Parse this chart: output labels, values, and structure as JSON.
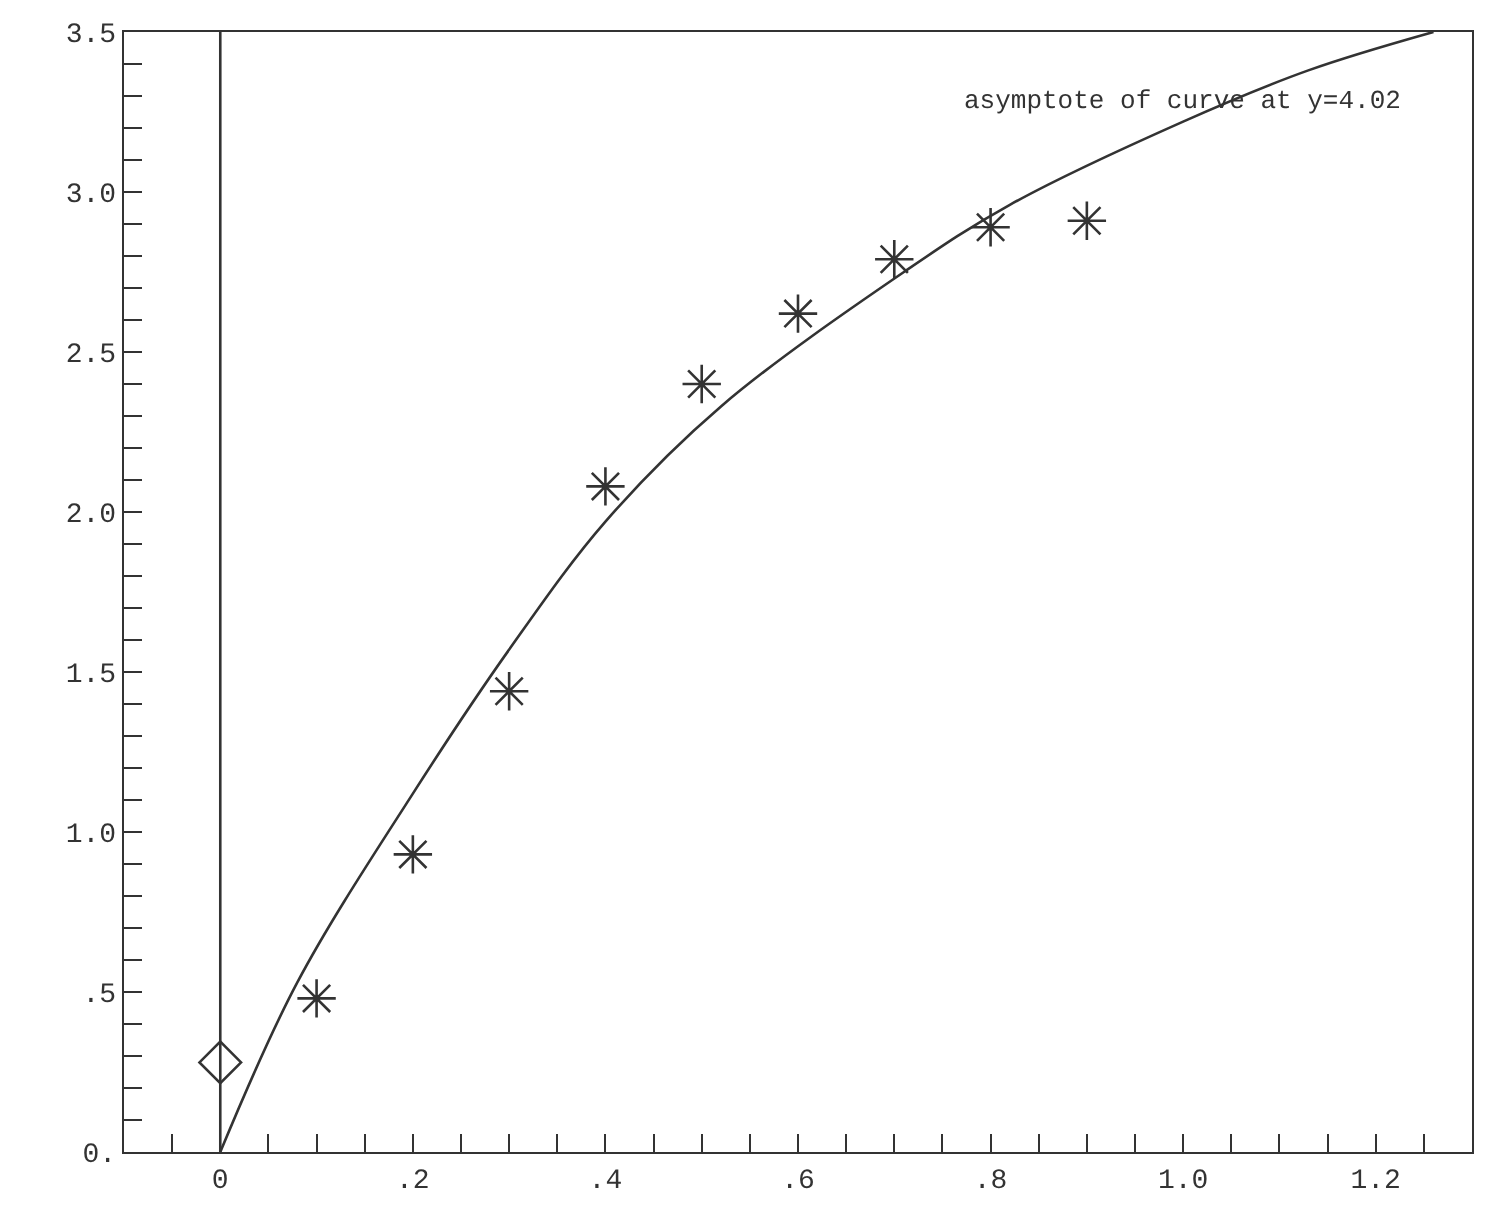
{
  "chart_data": {
    "type": "scatter",
    "annotations": [
      "asymptote of curve at y=4.02"
    ],
    "xlim": [
      -0.1,
      1.3
    ],
    "xticks": [
      {
        "value": -0.05,
        "label": null
      },
      {
        "value": 0,
        "label": "0"
      },
      {
        "value": 0.05,
        "label": null
      },
      {
        "value": 0.1,
        "label": null
      },
      {
        "value": 0.15,
        "label": null
      },
      {
        "value": 0.2,
        "label": ".2"
      },
      {
        "value": 0.25,
        "label": null
      },
      {
        "value": 0.3,
        "label": null
      },
      {
        "value": 0.35,
        "label": null
      },
      {
        "value": 0.4,
        "label": ".4"
      },
      {
        "value": 0.45,
        "label": null
      },
      {
        "value": 0.5,
        "label": null
      },
      {
        "value": 0.55,
        "label": null
      },
      {
        "value": 0.6,
        "label": ".6"
      },
      {
        "value": 0.65,
        "label": null
      },
      {
        "value": 0.7,
        "label": null
      },
      {
        "value": 0.75,
        "label": null
      },
      {
        "value": 0.8,
        "label": ".8"
      },
      {
        "value": 0.85,
        "label": null
      },
      {
        "value": 0.9,
        "label": null
      },
      {
        "value": 0.95,
        "label": null
      },
      {
        "value": 1.0,
        "label": "1.0"
      },
      {
        "value": 1.05,
        "label": null
      },
      {
        "value": 1.1,
        "label": null
      },
      {
        "value": 1.15,
        "label": null
      },
      {
        "value": 1.2,
        "label": "1.2"
      },
      {
        "value": 1.25,
        "label": null
      }
    ],
    "ylim": [
      0,
      3.5
    ],
    "yticks": [
      {
        "value": 0,
        "label": "0."
      },
      {
        "value": 0.1,
        "label": null
      },
      {
        "value": 0.2,
        "label": null
      },
      {
        "value": 0.3,
        "label": null
      },
      {
        "value": 0.4,
        "label": null
      },
      {
        "value": 0.5,
        "label": ".5"
      },
      {
        "value": 0.6,
        "label": null
      },
      {
        "value": 0.7,
        "label": null
      },
      {
        "value": 0.8,
        "label": null
      },
      {
        "value": 0.9,
        "label": null
      },
      {
        "value": 1.0,
        "label": "1.0"
      },
      {
        "value": 1.1,
        "label": null
      },
      {
        "value": 1.2,
        "label": null
      },
      {
        "value": 1.3,
        "label": null
      },
      {
        "value": 1.4,
        "label": null
      },
      {
        "value": 1.5,
        "label": "1.5"
      },
      {
        "value": 1.6,
        "label": null
      },
      {
        "value": 1.7,
        "label": null
      },
      {
        "value": 1.8,
        "label": null
      },
      {
        "value": 1.9,
        "label": null
      },
      {
        "value": 2.0,
        "label": "2.0"
      },
      {
        "value": 2.1,
        "label": null
      },
      {
        "value": 2.2,
        "label": null
      },
      {
        "value": 2.3,
        "label": null
      },
      {
        "value": 2.4,
        "label": null
      },
      {
        "value": 2.5,
        "label": "2.5"
      },
      {
        "value": 2.6,
        "label": null
      },
      {
        "value": 2.7,
        "label": null
      },
      {
        "value": 2.8,
        "label": null
      },
      {
        "value": 2.9,
        "label": null
      },
      {
        "value": 3.0,
        "label": "3.0"
      },
      {
        "value": 3.1,
        "label": null
      },
      {
        "value": 3.2,
        "label": null
      },
      {
        "value": 3.3,
        "label": null
      },
      {
        "value": 3.4,
        "label": null
      },
      {
        "value": 3.5,
        "label": "3.5"
      }
    ],
    "ref_lines": [
      {
        "axis": "x",
        "value": 0,
        "color": "#333333"
      }
    ],
    "series": [
      {
        "marker": "cross",
        "color": "#333333",
        "x": [
          0.1,
          0.2,
          0.3,
          0.4,
          0.5,
          0.6,
          0.7,
          0.8,
          0.9
        ],
        "values": [
          0.48,
          0.93,
          1.44,
          2.08,
          2.4,
          2.62,
          2.79,
          2.89,
          2.91
        ]
      },
      {
        "marker": "diamond",
        "color": "#333333",
        "x": [
          0
        ],
        "values": [
          0.28
        ]
      },
      {
        "type": "line",
        "marker": "none",
        "color": "#333333",
        "x": [
          0,
          0.08,
          0.2,
          0.3,
          0.4,
          0.52,
          0.71,
          0.82,
          1.0,
          1.13,
          1.26
        ],
        "values": [
          0,
          0.53,
          1.12,
          1.57,
          1.97,
          2.33,
          2.75,
          2.96,
          3.22,
          3.38,
          3.5
        ]
      }
    ]
  }
}
